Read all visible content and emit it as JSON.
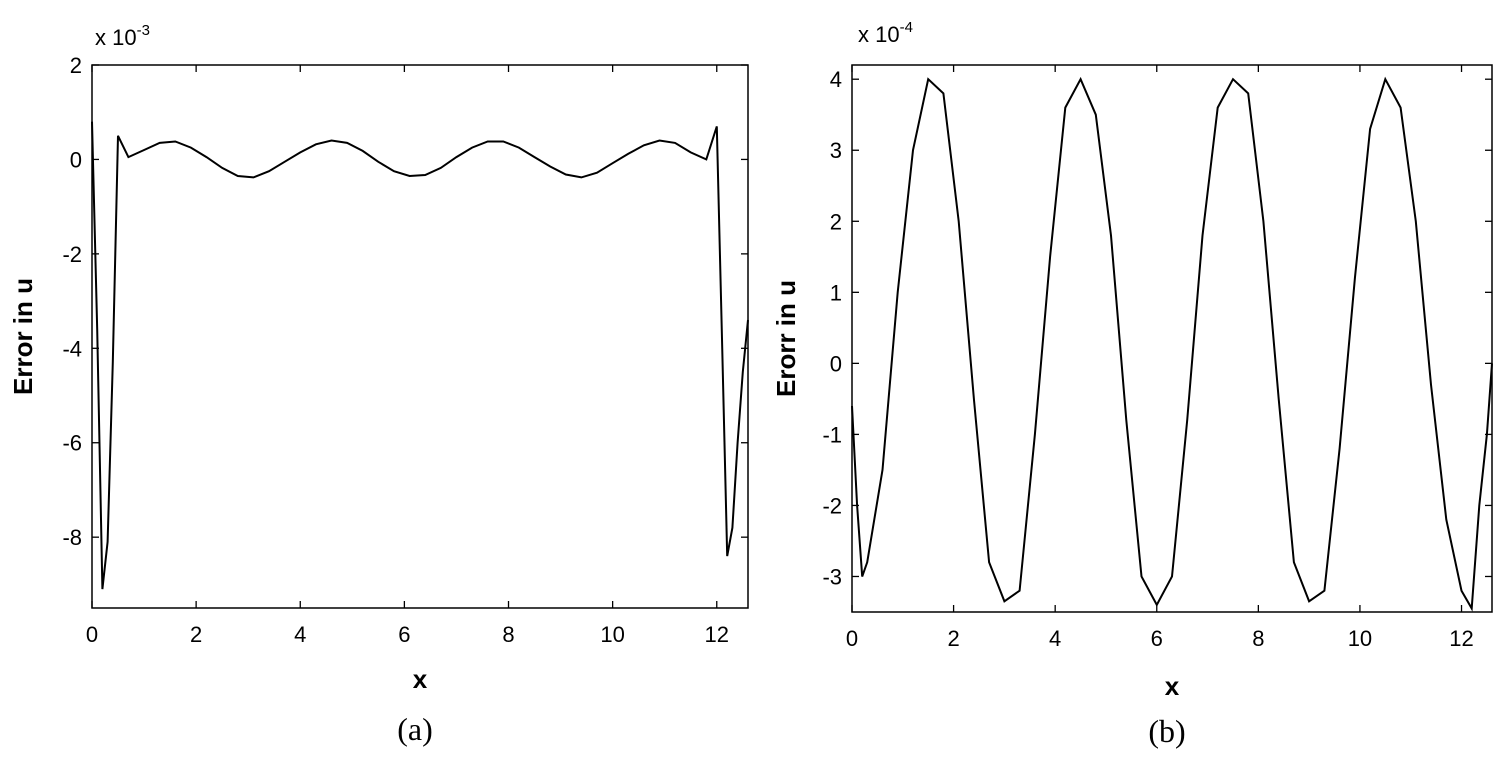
{
  "chart_data": [
    {
      "type": "line",
      "caption": "(a)",
      "xlabel": "x",
      "ylabel": "Error in u",
      "y_multiplier": {
        "base": "x 10",
        "exp": "-3"
      },
      "xlim": [
        0,
        12.6
      ],
      "ylim": [
        -9.5,
        2
      ],
      "xticks": [
        0,
        2,
        4,
        6,
        8,
        10,
        12
      ],
      "yticks": [
        2,
        0,
        -2,
        -4,
        -6,
        -8
      ],
      "grid": false,
      "x": [
        0,
        0.1,
        0.2,
        0.3,
        0.4,
        0.5,
        0.7,
        1.0,
        1.3,
        1.6,
        1.9,
        2.2,
        2.5,
        2.8,
        3.1,
        3.4,
        3.7,
        4.0,
        4.3,
        4.6,
        4.9,
        5.2,
        5.5,
        5.8,
        6.1,
        6.4,
        6.7,
        7.0,
        7.3,
        7.6,
        7.9,
        8.2,
        8.5,
        8.8,
        9.1,
        9.4,
        9.7,
        10.0,
        10.3,
        10.6,
        10.9,
        11.2,
        11.5,
        11.8,
        12.0,
        12.1,
        12.2,
        12.3,
        12.4,
        12.5,
        12.6
      ],
      "y": [
        0.8,
        -3.6,
        -9.1,
        -8.1,
        -4.3,
        0.5,
        0.05,
        0.2,
        0.35,
        0.38,
        0.25,
        0.05,
        -0.18,
        -0.35,
        -0.38,
        -0.25,
        -0.05,
        0.15,
        0.32,
        0.4,
        0.35,
        0.18,
        -0.05,
        -0.25,
        -0.35,
        -0.33,
        -0.18,
        0.05,
        0.25,
        0.38,
        0.38,
        0.25,
        0.05,
        -0.15,
        -0.32,
        -0.38,
        -0.28,
        -0.08,
        0.12,
        0.3,
        0.4,
        0.35,
        0.15,
        0.0,
        0.7,
        -3.8,
        -8.4,
        -7.8,
        -6.0,
        -4.5,
        -3.4
      ]
    },
    {
      "type": "line",
      "caption": "(b)",
      "xlabel": "x",
      "ylabel": "Erorr in u",
      "y_multiplier": {
        "base": "x 10",
        "exp": "-4"
      },
      "xlim": [
        0,
        12.6
      ],
      "ylim": [
        -3.5,
        4.2
      ],
      "xticks": [
        0,
        2,
        4,
        6,
        8,
        10,
        12
      ],
      "yticks": [
        4,
        3,
        2,
        1,
        0,
        -1,
        -2,
        -3
      ],
      "grid": false,
      "x": [
        0,
        0.1,
        0.2,
        0.3,
        0.6,
        0.9,
        1.2,
        1.5,
        1.8,
        2.1,
        2.4,
        2.7,
        3.0,
        3.3,
        3.6,
        3.9,
        4.2,
        4.5,
        4.8,
        5.1,
        5.4,
        5.7,
        6.0,
        6.3,
        6.6,
        6.9,
        7.2,
        7.5,
        7.8,
        8.1,
        8.4,
        8.7,
        9.0,
        9.3,
        9.6,
        9.9,
        10.2,
        10.5,
        10.8,
        11.1,
        11.4,
        11.7,
        12.0,
        12.2,
        12.35,
        12.5,
        12.6
      ],
      "y": [
        -0.6,
        -2.0,
        -3.0,
        -2.8,
        -1.5,
        1.0,
        3.0,
        4.0,
        3.8,
        2.0,
        -0.5,
        -2.8,
        -3.35,
        -3.2,
        -1.0,
        1.5,
        3.6,
        4.0,
        3.5,
        1.8,
        -0.8,
        -3.0,
        -3.4,
        -3.0,
        -0.8,
        1.8,
        3.6,
        4.0,
        3.8,
        2.0,
        -0.5,
        -2.8,
        -3.35,
        -3.2,
        -1.2,
        1.2,
        3.3,
        4.0,
        3.6,
        2.0,
        -0.3,
        -2.2,
        -3.2,
        -3.45,
        -2.0,
        -1.0,
        0.0
      ]
    }
  ]
}
